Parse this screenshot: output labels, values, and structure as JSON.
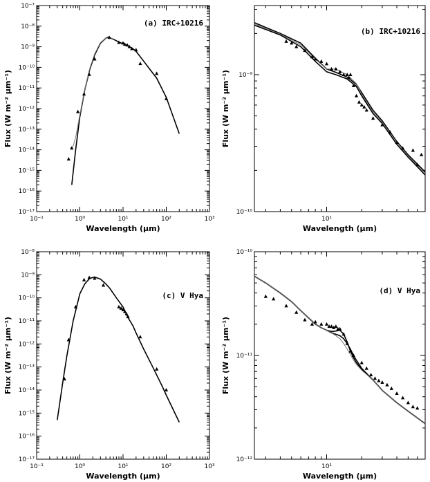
{
  "chart_data": [
    {
      "id": "a",
      "type": "line",
      "title": "(a) IRC+10216",
      "xlabel": "Wavelength (μm)",
      "ylabel": "Flux (W m⁻² μm⁻¹)",
      "xscale": "log",
      "yscale": "log",
      "xlim": [
        0.1,
        1000
      ],
      "ylim": [
        1e-17,
        1e-07
      ],
      "xtick_exponents": [
        -1,
        0,
        1,
        2,
        3
      ],
      "ytick_exponents": [
        -17,
        -16,
        -15,
        -14,
        -13,
        -12,
        -11,
        -10,
        -9,
        -8,
        -7
      ],
      "series": [
        {
          "style": "model",
          "x": [
            0.65,
            0.8,
            1.0,
            1.3,
            1.7,
            2.2,
            3.0,
            4.0,
            4.5,
            5.0,
            6.0,
            8.0,
            10.0,
            13.0,
            17.0,
            20.0,
            30.0,
            40.0,
            60.0,
            100.0,
            200.0
          ],
          "y": [
            2e-16,
            1e-14,
            4e-13,
            8e-12,
            8e-11,
            4e-10,
            1.5e-09,
            2.6e-09,
            2.9e-09,
            2.7e-09,
            2.3e-09,
            1.7e-09,
            1.4e-09,
            1.1e-09,
            8e-10,
            6e-10,
            2e-10,
            9e-11,
            3e-11,
            3.5e-12,
            6e-14
          ]
        },
        {
          "style": "model2",
          "x": [
            0.6,
            0.7,
            0.8,
            1.0,
            1.3,
            1.7,
            2.2,
            3.0,
            4.0,
            5.0,
            6.0
          ],
          "y": [
            1.2e-14,
            1.5e-14,
            4e-14,
            5e-13,
            8e-12,
            9e-11,
            4.5e-10,
            1.6e-09,
            2.6e-09,
            2.8e-09,
            2.4e-09
          ]
        },
        {
          "style": "points",
          "x": [
            0.55,
            0.65,
            0.9,
            1.25,
            1.65,
            2.2,
            4.8,
            8.0,
            10.0,
            11.0,
            12.5,
            14.0,
            16.0,
            20.0,
            25.0,
            60.0,
            100.0
          ],
          "y": [
            3.5e-15,
            1.2e-14,
            7e-13,
            5e-12,
            4.5e-11,
            2.5e-10,
            2.8e-09,
            1.6e-09,
            1.5e-09,
            1.3e-09,
            1.2e-09,
            1e-09,
            8e-10,
            7e-10,
            1.5e-10,
            5e-11,
            3e-12
          ]
        }
      ]
    },
    {
      "id": "b",
      "type": "line",
      "title": "(b) IRC+10216",
      "xlabel": "Wavelength (μm)",
      "ylabel": "Flux (W m⁻² μm⁻¹)",
      "xscale": "log",
      "yscale": "log",
      "xlim": [
        2.4,
        70
      ],
      "ylim": [
        1e-10,
        3.2e-09
      ],
      "xtick_exponents": [
        1
      ],
      "ytick_exponents": [
        -10,
        -9
      ],
      "series": [
        {
          "style": "model",
          "x": [
            2.4,
            4,
            6,
            8,
            10,
            12,
            15,
            18,
            20,
            25,
            30,
            40,
            50,
            70
          ],
          "y": [
            2.3e-09,
            1.95e-09,
            1.6e-09,
            1.25e-09,
            1.05e-09,
            1e-09,
            9.3e-10,
            8.2e-10,
            7e-10,
            5.2e-10,
            4.4e-10,
            3.1e-10,
            2.5e-10,
            1.85e-10
          ]
        },
        {
          "style": "model",
          "x": [
            2.4,
            4,
            6,
            8,
            10,
            12,
            15,
            18,
            20,
            25,
            30,
            40,
            50,
            70
          ],
          "y": [
            2.4e-09,
            2e-09,
            1.7e-09,
            1.32e-09,
            1.1e-09,
            1.04e-09,
            9.6e-10,
            8.5e-10,
            7.4e-10,
            5.5e-10,
            4.6e-10,
            3.25e-10,
            2.6e-10,
            1.95e-10
          ]
        },
        {
          "style": "model2",
          "x": [
            2.4,
            4,
            6,
            8,
            10,
            12,
            15,
            18,
            20,
            25,
            30,
            40,
            50,
            70
          ],
          "y": [
            2.35e-09,
            1.98e-09,
            1.65e-09,
            1.3e-09,
            1.1e-09,
            1.1e-09,
            1e-09,
            8.6e-10,
            7.2e-10,
            5.35e-10,
            4.5e-10,
            3.2e-10,
            2.55e-10,
            1.9e-10
          ]
        },
        {
          "style": "points",
          "x": [
            4.5,
            5.0,
            5.5,
            6.5,
            7.5,
            8.0,
            9.0,
            10.0,
            11.0,
            12.0,
            13.0,
            14.0,
            15.0,
            15.5,
            16.0,
            17.0,
            18.0,
            19.0,
            20.0,
            21.0,
            22.0,
            25.0,
            30.0,
            35.0,
            40.0,
            45.0,
            55.0,
            60.0,
            65.0
          ],
          "y": [
            1.75e-09,
            1.7e-09,
            1.6e-09,
            1.5e-09,
            1.35e-09,
            1.3e-09,
            1.25e-09,
            1.2e-09,
            1.1e-09,
            1.1e-09,
            1.05e-09,
            1e-09,
            1e-09,
            9.5e-10,
            1e-09,
            8.3e-10,
            7e-10,
            6.3e-10,
            6e-10,
            5.8e-10,
            5.5e-10,
            4.8e-10,
            4.3e-10,
            3.8e-10,
            3.2e-10,
            2.9e-10,
            2.8e-10,
            2.2e-10,
            2.6e-10
          ]
        }
      ]
    },
    {
      "id": "c",
      "type": "line",
      "title": "(c) V Hya",
      "xlabel": "Wavelength (μm)",
      "ylabel": "Flux (W m⁻² μm⁻¹)",
      "xscale": "log",
      "yscale": "log",
      "xlim": [
        0.1,
        1000
      ],
      "ylim": [
        1e-17,
        1e-08
      ],
      "xtick_exponents": [
        -1,
        0,
        1,
        2,
        3
      ],
      "ytick_exponents": [
        -17,
        -16,
        -15,
        -14,
        -13,
        -12,
        -11,
        -10,
        -9,
        -8
      ],
      "series": [
        {
          "style": "model",
          "x": [
            0.3,
            0.4,
            0.5,
            0.7,
            1.0,
            1.3,
            1.7,
            2.2,
            3.0,
            4.0,
            5.0,
            7.0,
            10.0,
            13.0,
            17.0,
            20.0,
            30.0,
            50.0,
            80.0,
            100.0,
            200.0
          ],
          "y": [
            5e-16,
            2e-14,
            3e-13,
            1e-11,
            1.5e-10,
            4e-10,
            7e-10,
            8e-10,
            6.5e-10,
            4e-10,
            2.5e-10,
            1e-10,
            4e-11,
            1.4e-11,
            6e-12,
            3e-12,
            6e-13,
            9e-14,
            1.5e-14,
            6e-15,
            4e-16
          ]
        },
        {
          "style": "points",
          "x": [
            0.44,
            0.55,
            0.8,
            1.25,
            1.65,
            2.2,
            3.5,
            8.0,
            9.0,
            10.0,
            11.0,
            12.0,
            13.0,
            25.0,
            60.0,
            100.0
          ],
          "y": [
            3e-14,
            1.5e-12,
            4e-11,
            6e-10,
            7.5e-10,
            7e-10,
            3.5e-10,
            4e-11,
            3.5e-11,
            3e-11,
            2.5e-11,
            2e-11,
            1.5e-11,
            2e-12,
            8e-14,
            1e-14
          ]
        }
      ]
    },
    {
      "id": "d",
      "type": "line",
      "title": "(d) V Hya",
      "xlabel": "Wavelength (μm)",
      "ylabel": "Flux (W m⁻² μm⁻¹)",
      "xscale": "log",
      "yscale": "log",
      "xlim": [
        2.4,
        70
      ],
      "ylim": [
        1e-12,
        1e-10
      ],
      "xtick_exponents": [
        1
      ],
      "ytick_exponents": [
        -12,
        -11,
        -10
      ],
      "series": [
        {
          "style": "model",
          "x": [
            2.4,
            3,
            4,
            5,
            6,
            7,
            8,
            9,
            10,
            11,
            12,
            13,
            14,
            15,
            16,
            17,
            18,
            20,
            25,
            30,
            40,
            50,
            70
          ],
          "y": [
            5.8e-11,
            5e-11,
            4e-11,
            3.3e-11,
            2.7e-11,
            2.3e-11,
            2e-11,
            1.85e-11,
            1.75e-11,
            1.65e-11,
            1.6e-11,
            1.55e-11,
            1.45e-11,
            1.3e-11,
            1.15e-11,
            1e-11,
            9e-12,
            7.5e-12,
            5.8e-12,
            4.6e-12,
            3.5e-12,
            2.9e-12,
            2.2e-12
          ]
        },
        {
          "style": "model",
          "x": [
            2.4,
            3,
            4,
            5,
            6,
            7,
            8,
            9,
            10,
            11,
            12,
            13,
            14,
            15,
            16,
            17,
            18,
            20,
            25,
            30,
            40,
            50,
            70
          ],
          "y": [
            5.8e-11,
            5e-11,
            4e-11,
            3.3e-11,
            2.7e-11,
            2.3e-11,
            2e-11,
            1.85e-11,
            1.75e-11,
            1.7e-11,
            1.72e-11,
            1.75e-11,
            1.6e-11,
            1.35e-11,
            1.1e-11,
            9.5e-12,
            8.5e-12,
            7.3e-12,
            5.8e-12,
            4.6e-12,
            3.5e-12,
            2.9e-12,
            2.2e-12
          ]
        },
        {
          "style": "model2",
          "x": [
            2.4,
            3,
            4,
            5,
            6,
            7,
            8,
            9,
            10,
            11,
            12,
            13,
            14,
            15,
            16,
            17,
            18,
            20,
            25,
            30,
            40,
            50,
            70
          ],
          "y": [
            5.8e-11,
            5e-11,
            4e-11,
            3.3e-11,
            2.7e-11,
            2.3e-11,
            2e-11,
            1.85e-11,
            1.75e-11,
            1.65e-11,
            1.55e-11,
            1.45e-11,
            1.3e-11,
            1.15e-11,
            1.02e-11,
            9e-12,
            8.2e-12,
            7.2e-12,
            5.8e-12,
            4.6e-12,
            3.5e-12,
            2.9e-12,
            2.2e-12
          ]
        },
        {
          "style": "points",
          "x": [
            3.0,
            3.5,
            4.5,
            5.5,
            6.5,
            7.5,
            8.0,
            9.0,
            10.0,
            10.5,
            11.0,
            11.5,
            12.0,
            12.5,
            13.0,
            14.0,
            15.0,
            16.0,
            17.0,
            20.0,
            22.0,
            24.0,
            26.0,
            28.0,
            30.0,
            33.0,
            36.0,
            40.0,
            45.0,
            50.0,
            55.0,
            60.0
          ],
          "y": [
            3.7e-11,
            3.5e-11,
            3e-11,
            2.6e-11,
            2.2e-11,
            2e-11,
            2.1e-11,
            2e-11,
            2e-11,
            1.9e-11,
            1.9e-11,
            1.85e-11,
            1.9e-11,
            1.8e-11,
            1.8e-11,
            1.6e-11,
            1.3e-11,
            1.1e-11,
            1e-11,
            8.5e-12,
            7.5e-12,
            6.5e-12,
            6e-12,
            5.7e-12,
            5.5e-12,
            5.2e-12,
            4.8e-12,
            4.3e-12,
            3.9e-12,
            3.5e-12,
            3.2e-12,
            3.1e-12
          ]
        }
      ]
    }
  ]
}
